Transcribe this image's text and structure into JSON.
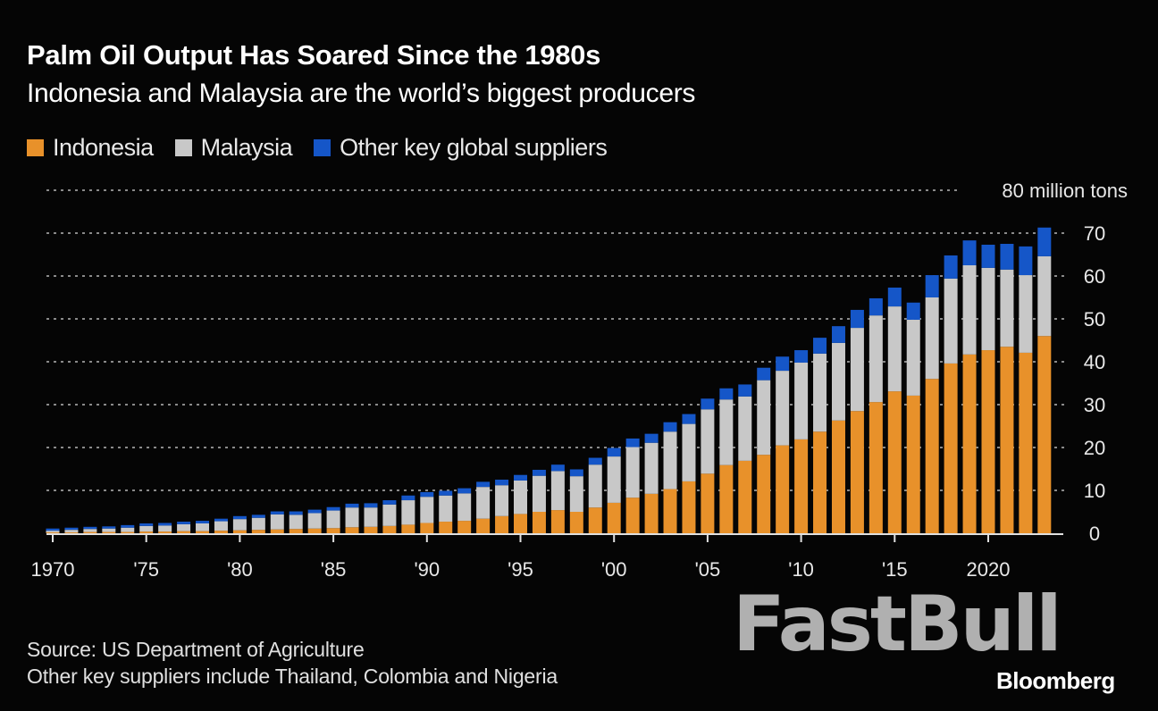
{
  "colors": {
    "indonesia": "#e8912a",
    "malaysia": "#c8c8c8",
    "other": "#1556c8",
    "background": "#050505",
    "grid": "#8a8a8a"
  },
  "chart_data": {
    "type": "bar",
    "stacked": true,
    "title": "Palm Oil Output Has Soared Since the 1980s",
    "subtitle": "Indonesia and Malaysia are the world’s biggest producers",
    "ylabel": "80 million tons",
    "ylim": [
      0,
      80
    ],
    "yticks": [
      0,
      10,
      20,
      30,
      40,
      50,
      60,
      70
    ],
    "grid": true,
    "legend_placement": "top-left",
    "x": [
      1970,
      1971,
      1972,
      1973,
      1974,
      1975,
      1976,
      1977,
      1978,
      1979,
      1980,
      1981,
      1982,
      1983,
      1984,
      1985,
      1986,
      1987,
      1988,
      1989,
      1990,
      1991,
      1992,
      1993,
      1994,
      1995,
      1996,
      1997,
      1998,
      1999,
      2000,
      2001,
      2002,
      2003,
      2004,
      2005,
      2006,
      2007,
      2008,
      2009,
      2010,
      2011,
      2012,
      2013,
      2014,
      2015,
      2016,
      2017,
      2018,
      2019,
      2020,
      2021,
      2022,
      2023
    ],
    "xtick_labels": [
      {
        "year": 1970,
        "label": "1970"
      },
      {
        "year": 1975,
        "label": "'75"
      },
      {
        "year": 1980,
        "label": "'80"
      },
      {
        "year": 1985,
        "label": "'85"
      },
      {
        "year": 1990,
        "label": "'90"
      },
      {
        "year": 1995,
        "label": "'95"
      },
      {
        "year": 2000,
        "label": "'00"
      },
      {
        "year": 2005,
        "label": "'05"
      },
      {
        "year": 2010,
        "label": "'10"
      },
      {
        "year": 2015,
        "label": "'15"
      },
      {
        "year": 2020,
        "label": "2020"
      }
    ],
    "series": [
      {
        "name": "Indonesia",
        "values": [
          0.2,
          0.2,
          0.3,
          0.3,
          0.3,
          0.4,
          0.4,
          0.5,
          0.5,
          0.6,
          0.7,
          0.8,
          0.9,
          1.0,
          1.1,
          1.2,
          1.4,
          1.5,
          1.7,
          2.0,
          2.4,
          2.7,
          2.9,
          3.4,
          4.0,
          4.5,
          5.0,
          5.4,
          5.0,
          6.0,
          7.1,
          8.3,
          9.2,
          10.3,
          12.1,
          13.9,
          15.9,
          16.9,
          18.3,
          20.5,
          21.9,
          23.7,
          26.3,
          28.5,
          30.6,
          33.1,
          32.1,
          36.0,
          39.6,
          41.7,
          42.7,
          43.5,
          42.1,
          46.0
        ]
      },
      {
        "name": "Malaysia",
        "values": [
          0.4,
          0.6,
          0.7,
          0.8,
          1.0,
          1.3,
          1.4,
          1.6,
          1.8,
          2.2,
          2.6,
          2.8,
          3.5,
          3.3,
          3.6,
          4.1,
          4.6,
          4.5,
          5.0,
          5.7,
          6.1,
          6.1,
          6.4,
          7.4,
          7.2,
          7.8,
          8.4,
          9.1,
          8.3,
          10.0,
          10.8,
          11.8,
          11.9,
          13.4,
          13.4,
          15.0,
          15.3,
          15.0,
          17.4,
          17.4,
          17.9,
          18.2,
          18.1,
          19.4,
          20.2,
          19.8,
          17.7,
          19.0,
          19.8,
          20.8,
          19.2,
          18.0,
          18.1,
          18.6
        ]
      },
      {
        "name": "Other key global suppliers",
        "values": [
          0.5,
          0.5,
          0.5,
          0.5,
          0.6,
          0.6,
          0.6,
          0.6,
          0.6,
          0.6,
          0.7,
          0.7,
          0.7,
          0.8,
          0.8,
          0.8,
          0.9,
          1.0,
          1.0,
          1.1,
          1.1,
          1.1,
          1.2,
          1.2,
          1.3,
          1.3,
          1.4,
          1.5,
          1.6,
          1.6,
          2.0,
          2.0,
          2.1,
          2.2,
          2.3,
          2.5,
          2.6,
          2.8,
          2.9,
          3.3,
          2.9,
          3.7,
          3.9,
          4.2,
          4.0,
          4.4,
          4.0,
          5.2,
          5.4,
          5.8,
          5.4,
          6.0,
          6.7,
          6.7
        ]
      }
    ]
  },
  "legend": [
    {
      "label": "Indonesia",
      "key": "indonesia"
    },
    {
      "label": "Malaysia",
      "key": "malaysia"
    },
    {
      "label": "Other key global suppliers",
      "key": "other"
    }
  ],
  "footer": {
    "source": "Source: US Department of Agriculture",
    "note": "Other key suppliers include Thailand, Colombia and Nigeria"
  },
  "logos": {
    "watermark": "FastBull",
    "brand": "Bloomberg"
  }
}
